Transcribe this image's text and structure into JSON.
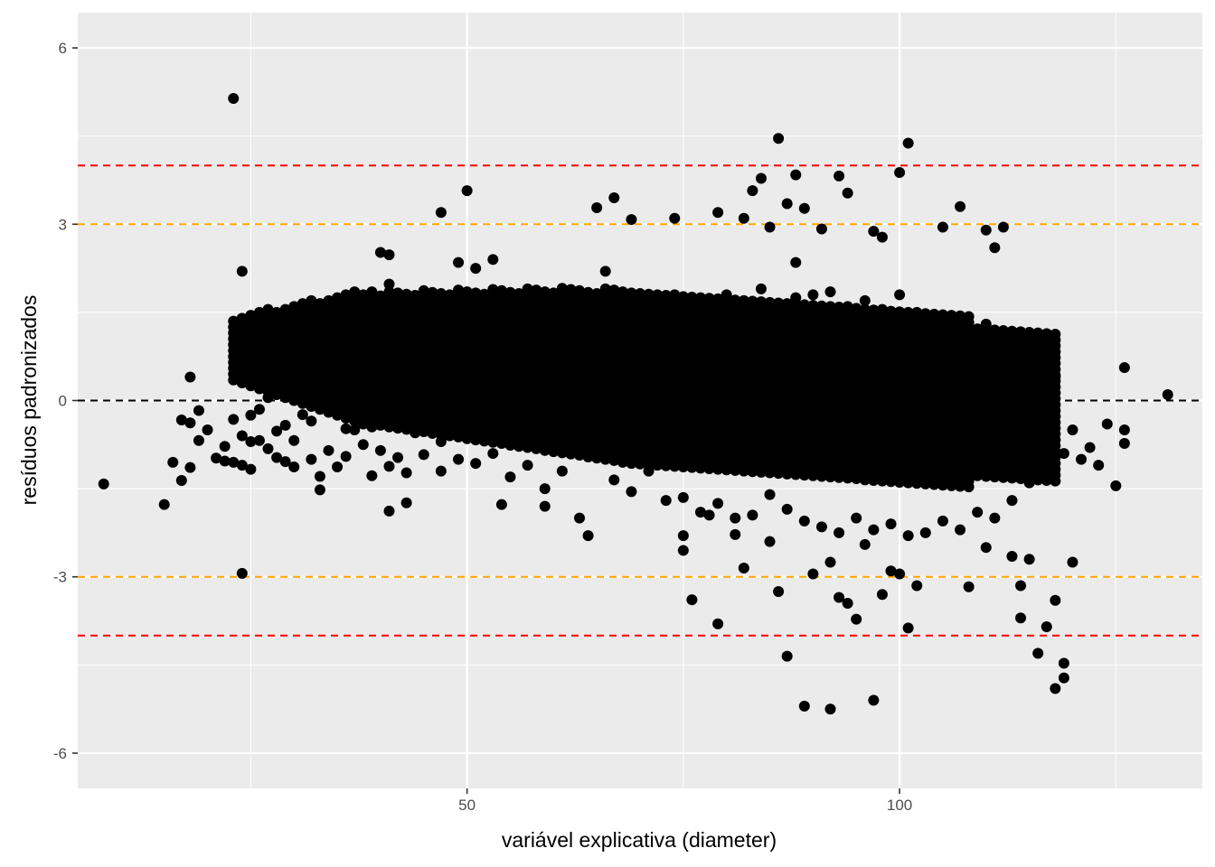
{
  "chart_data": {
    "type": "scatter",
    "title": "",
    "xlabel": "variável explicativa (diameter)",
    "ylabel": "resíduos padronizados",
    "xlim": [
      5,
      135
    ],
    "ylim": [
      -6.6,
      6.6
    ],
    "x_ticks": [
      50,
      100
    ],
    "x_minor_ticks": [
      25,
      75,
      125
    ],
    "y_ticks": [
      -6,
      -3,
      0,
      3,
      6
    ],
    "y_tick_labels": [
      "-6",
      "-3",
      "0",
      "3",
      "6"
    ],
    "y_minor_ticks": [
      -4.5,
      -1.5,
      1.5,
      4.5
    ],
    "grid": true,
    "reference_lines": [
      {
        "y": 4,
        "color": "#ff0000"
      },
      {
        "y": 3,
        "color": "#ffa500"
      },
      {
        "y": 0,
        "color": "#000000"
      },
      {
        "y": -3,
        "color": "#ffa500"
      },
      {
        "y": -4,
        "color": "#ff0000"
      }
    ],
    "point_color": "#000000",
    "panel_color": "#ebebeb",
    "grid_color": "#ffffff",
    "note_dense_band": "main mass of points forms a tilted band (approx. 2300 residuals on a 1-unit diameter grid)",
    "series": [
      {
        "values": [
          [
            8,
            -1.42
          ],
          [
            15,
            -1.77
          ],
          [
            16,
            -1.05
          ],
          [
            17,
            -1.36
          ],
          [
            17,
            -0.33
          ],
          [
            18,
            -1.14
          ],
          [
            18,
            -0.38
          ],
          [
            18,
            0.4
          ],
          [
            19,
            -0.68
          ],
          [
            19,
            -0.17
          ],
          [
            20,
            -0.5
          ],
          [
            21,
            -0.98
          ],
          [
            22,
            -1.03
          ],
          [
            22,
            -0.78
          ],
          [
            23,
            -1.05
          ],
          [
            23,
            -0.32
          ],
          [
            24,
            -1.1
          ],
          [
            24,
            -0.6
          ],
          [
            25,
            -1.17
          ],
          [
            25,
            -0.7
          ],
          [
            25,
            -0.25
          ],
          [
            26,
            -0.68
          ],
          [
            26,
            -0.15
          ],
          [
            27,
            0.05
          ],
          [
            27,
            -0.82
          ],
          [
            28,
            -0.97
          ],
          [
            28,
            -0.52
          ],
          [
            29,
            -1.04
          ],
          [
            29,
            -0.42
          ],
          [
            30,
            -0.68
          ],
          [
            30,
            -1.13
          ],
          [
            31,
            0.37
          ],
          [
            31,
            -0.24
          ],
          [
            32,
            -0.35
          ],
          [
            32,
            -1.0
          ],
          [
            33,
            -1.29
          ],
          [
            33,
            -1.52
          ],
          [
            33,
            0.0
          ],
          [
            34,
            0.2
          ],
          [
            34,
            -0.85
          ],
          [
            35,
            -0.17
          ],
          [
            35,
            -1.13
          ],
          [
            35,
            0.15
          ],
          [
            36,
            -0.95
          ],
          [
            36,
            -0.48
          ],
          [
            37,
            -0.5
          ],
          [
            38,
            0.3
          ],
          [
            38,
            -0.75
          ],
          [
            39,
            -1.28
          ],
          [
            39,
            0.27
          ],
          [
            40,
            -0.85
          ],
          [
            41,
            -1.12
          ],
          [
            41,
            0.45
          ],
          [
            42,
            -0.97
          ],
          [
            42,
            -0.45
          ],
          [
            43,
            0.0
          ],
          [
            43,
            -1.23
          ],
          [
            44,
            0.95
          ],
          [
            44,
            -0.55
          ],
          [
            45,
            -0.92
          ],
          [
            46,
            0.65
          ],
          [
            46,
            -0.25
          ],
          [
            47,
            -1.2
          ],
          [
            47,
            -0.7
          ],
          [
            48,
            0.2
          ],
          [
            49,
            0.6
          ],
          [
            49,
            -1.0
          ],
          [
            50,
            1.3
          ],
          [
            50,
            -0.3
          ],
          [
            51,
            -1.07
          ],
          [
            52,
            0.4
          ],
          [
            53,
            -0.9
          ],
          [
            54,
            0.6
          ],
          [
            55,
            -1.3
          ],
          [
            56,
            0.9
          ],
          [
            57,
            -1.1
          ],
          [
            58,
            0.3
          ],
          [
            59,
            -1.5
          ],
          [
            60,
            1.1
          ],
          [
            61,
            -1.2
          ],
          [
            62,
            0.4
          ],
          [
            63,
            -0.9
          ],
          [
            64,
            1.35
          ],
          [
            65,
            -0.8
          ],
          [
            66,
            1.25
          ],
          [
            67,
            -1.35
          ],
          [
            68,
            1.55
          ],
          [
            69,
            -1.55
          ],
          [
            70,
            1.3
          ],
          [
            71,
            -1.2
          ],
          [
            72,
            1.65
          ],
          [
            73,
            -1.7
          ],
          [
            74,
            1.8
          ],
          [
            75,
            -1.65
          ],
          [
            76,
            0.5
          ],
          [
            77,
            -1.9
          ],
          [
            78,
            1.4
          ],
          [
            79,
            -1.75
          ],
          [
            80,
            1.8
          ],
          [
            81,
            -2.0
          ],
          [
            82,
            1.7
          ],
          [
            83,
            -1.95
          ],
          [
            84,
            1.9
          ],
          [
            85,
            -1.6
          ],
          [
            86,
            1.6
          ],
          [
            87,
            -1.85
          ],
          [
            88,
            1.75
          ],
          [
            89,
            -2.05
          ],
          [
            90,
            1.8
          ],
          [
            91,
            -2.15
          ],
          [
            92,
            1.85
          ],
          [
            93,
            -2.25
          ],
          [
            94,
            1.6
          ],
          [
            95,
            -2.0
          ],
          [
            96,
            1.7
          ],
          [
            97,
            -2.2
          ],
          [
            98,
            1.55
          ],
          [
            99,
            -2.1
          ],
          [
            100,
            1.8
          ],
          [
            101,
            -2.3
          ],
          [
            102,
            1.5
          ],
          [
            103,
            -2.25
          ],
          [
            104,
            1.45
          ],
          [
            105,
            -2.05
          ],
          [
            106,
            1.35
          ],
          [
            107,
            -2.2
          ],
          [
            108,
            1.2
          ],
          [
            109,
            -1.9
          ],
          [
            110,
            1.3
          ],
          [
            111,
            -2.0
          ],
          [
            112,
            1.1
          ],
          [
            113,
            -1.7
          ],
          [
            114,
            1.0
          ],
          [
            115,
            -1.4
          ],
          [
            116,
            0.75
          ],
          [
            117,
            -1.1
          ],
          [
            118,
            0.4
          ],
          [
            119,
            -0.9
          ],
          [
            120,
            -0.5
          ],
          [
            121,
            -1.0
          ],
          [
            122,
            -0.8
          ],
          [
            123,
            -1.1
          ],
          [
            124,
            -0.4
          ],
          [
            125,
            -1.45
          ],
          [
            126,
            -0.5
          ],
          [
            126,
            -0.73
          ],
          [
            126,
            0.56
          ],
          [
            131,
            0.1
          ],
          [
            23,
            5.14
          ],
          [
            24,
            2.2
          ],
          [
            24,
            -2.94
          ],
          [
            34,
            1.5
          ],
          [
            40,
            2.52
          ],
          [
            41,
            2.48
          ],
          [
            41,
            1.98
          ],
          [
            41,
            -1.88
          ],
          [
            42,
            1.42
          ],
          [
            43,
            1.35
          ],
          [
            43,
            -1.74
          ],
          [
            45,
            1.85
          ],
          [
            47,
            3.2
          ],
          [
            47,
            1.68
          ],
          [
            49,
            2.35
          ],
          [
            50,
            3.57
          ],
          [
            51,
            2.25
          ],
          [
            53,
            2.4
          ],
          [
            54,
            1.85
          ],
          [
            54,
            -1.77
          ],
          [
            59,
            -1.8
          ],
          [
            63,
            -2.0
          ],
          [
            64,
            -2.3
          ],
          [
            65,
            3.28
          ],
          [
            66,
            2.2
          ],
          [
            67,
            3.45
          ],
          [
            69,
            3.08
          ],
          [
            74,
            3.1
          ],
          [
            75,
            -2.3
          ],
          [
            75,
            -2.55
          ],
          [
            76,
            -3.39
          ],
          [
            78,
            -1.95
          ],
          [
            79,
            3.2
          ],
          [
            79,
            -3.8
          ],
          [
            81,
            -2.28
          ],
          [
            82,
            3.1
          ],
          [
            82,
            -2.85
          ],
          [
            83,
            3.57
          ],
          [
            84,
            3.78
          ],
          [
            85,
            2.95
          ],
          [
            85,
            -2.4
          ],
          [
            86,
            4.46
          ],
          [
            86,
            -3.25
          ],
          [
            87,
            3.35
          ],
          [
            87,
            -4.35
          ],
          [
            88,
            3.84
          ],
          [
            88,
            2.35
          ],
          [
            89,
            3.27
          ],
          [
            89,
            -5.2
          ],
          [
            90,
            -2.95
          ],
          [
            91,
            2.92
          ],
          [
            92,
            -2.75
          ],
          [
            93,
            3.82
          ],
          [
            93,
            -3.35
          ],
          [
            94,
            3.53
          ],
          [
            94,
            -3.45
          ],
          [
            95,
            -3.72
          ],
          [
            96,
            -2.45
          ],
          [
            97,
            2.88
          ],
          [
            97,
            -5.1
          ],
          [
            98,
            2.78
          ],
          [
            98,
            -3.3
          ],
          [
            99,
            -2.9
          ],
          [
            100,
            3.88
          ],
          [
            100,
            -2.95
          ],
          [
            101,
            4.38
          ],
          [
            101,
            -3.87
          ],
          [
            102,
            -3.15
          ],
          [
            105,
            2.95
          ],
          [
            107,
            3.3
          ],
          [
            108,
            -3.17
          ],
          [
            110,
            2.9
          ],
          [
            110,
            -2.5
          ],
          [
            111,
            2.6
          ],
          [
            112,
            2.95
          ],
          [
            113,
            -2.65
          ],
          [
            114,
            -3.15
          ],
          [
            114,
            -3.7
          ],
          [
            115,
            -2.7
          ],
          [
            116,
            -4.3
          ],
          [
            117,
            -3.85
          ],
          [
            118,
            -4.9
          ],
          [
            118,
            -3.4
          ],
          [
            119,
            -4.72
          ],
          [
            119,
            -4.47
          ],
          [
            120,
            -2.75
          ],
          [
            92,
            -5.25
          ]
        ]
      }
    ]
  }
}
